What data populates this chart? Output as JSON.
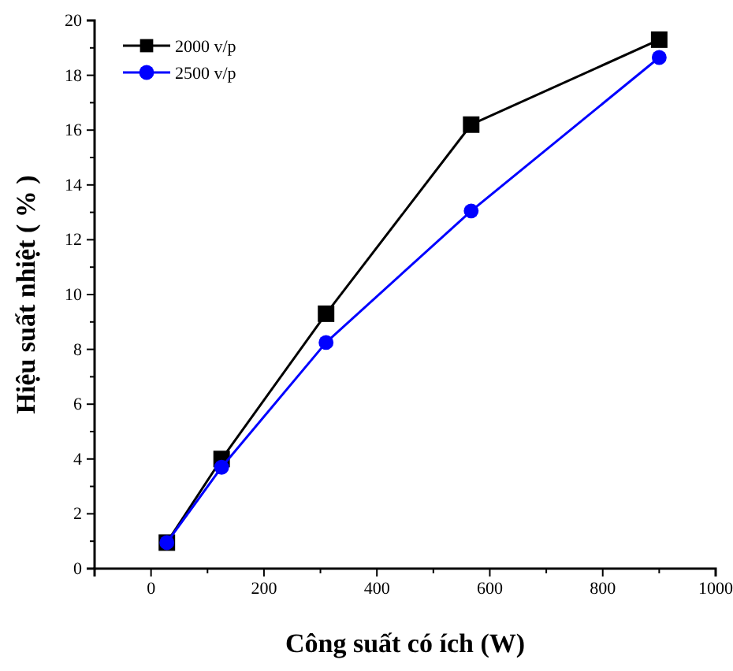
{
  "chart_data": {
    "type": "line",
    "xlabel": "Công suất có ích (W)",
    "ylabel": "Hiệu suất nhiệt ( % )",
    "x": [
      28,
      125,
      310,
      567,
      900
    ],
    "series": [
      {
        "name": "2000 v/p",
        "color": "#000000",
        "marker": "square",
        "values": [
          0.95,
          4.0,
          9.3,
          16.2,
          19.3
        ]
      },
      {
        "name": "2500 v/p",
        "color": "#0000ff",
        "marker": "circle",
        "values": [
          0.95,
          3.7,
          8.25,
          13.05,
          18.65
        ]
      }
    ],
    "xlim": [
      -100,
      1000
    ],
    "xticks": [
      0,
      200,
      400,
      600,
      800,
      1000
    ],
    "ylim": [
      0,
      20
    ],
    "yticks": [
      0,
      2,
      4,
      6,
      8,
      10,
      12,
      14,
      16,
      18,
      20
    ],
    "grid": false,
    "legend": "top left",
    "line_style": "solid"
  }
}
